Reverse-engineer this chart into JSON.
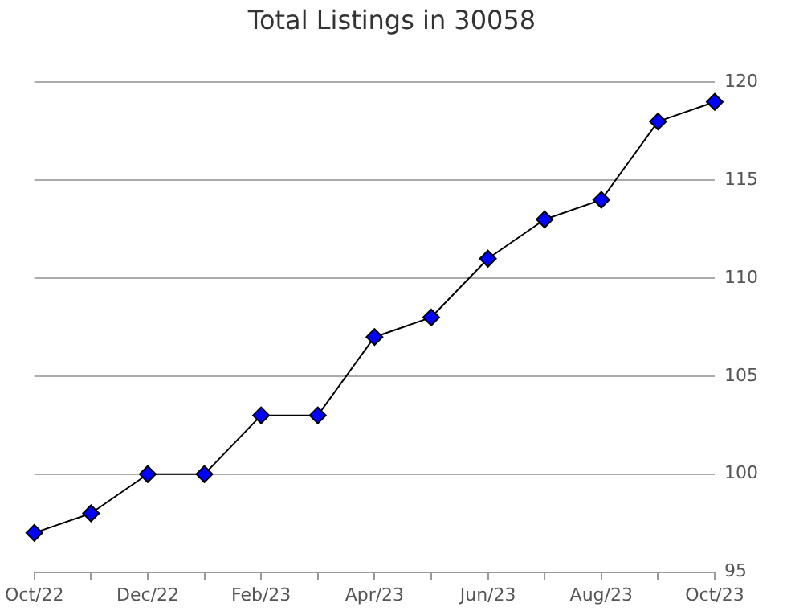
{
  "chart_data": {
    "type": "line",
    "title": "Total Listings in 30058",
    "categories": [
      "Oct/22",
      null,
      "Dec/22",
      null,
      "Feb/23",
      null,
      "Apr/23",
      null,
      "Jun/23",
      null,
      "Aug/23",
      null,
      "Oct/23"
    ],
    "series": [
      {
        "color": "#0000ff",
        "values": [
          97,
          98,
          100,
          100,
          103,
          103,
          107,
          108,
          111,
          113,
          114,
          118,
          119
        ]
      }
    ],
    "ylim": [
      95,
      120
    ],
    "yticks": [
      95,
      100,
      105,
      110,
      115,
      120
    ],
    "grid": "y",
    "marker": "diamond",
    "line_style": "solid",
    "legend": false
  }
}
